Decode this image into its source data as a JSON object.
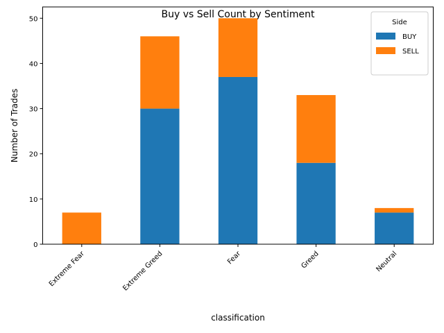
{
  "chart_data": {
    "type": "bar",
    "stacked": true,
    "title": "Buy vs Sell Count by Sentiment",
    "xlabel": "classification",
    "ylabel": "Number of Trades",
    "categories": [
      "Extreme Fear",
      "Extreme Greed",
      "Fear",
      "Greed",
      "Neutral"
    ],
    "series": [
      {
        "name": "BUY",
        "values": [
          0,
          30,
          37,
          18,
          7
        ],
        "color": "#1f77b4"
      },
      {
        "name": "SELL",
        "values": [
          7,
          16,
          13,
          15,
          1
        ],
        "color": "#ff7f0e"
      }
    ],
    "ylim": [
      0,
      52.5
    ],
    "yticks": [
      0,
      10,
      20,
      30,
      40,
      50
    ],
    "xtick_rotation": 45,
    "grid": false,
    "legend": {
      "title": "Side",
      "placement": "top-right"
    }
  }
}
